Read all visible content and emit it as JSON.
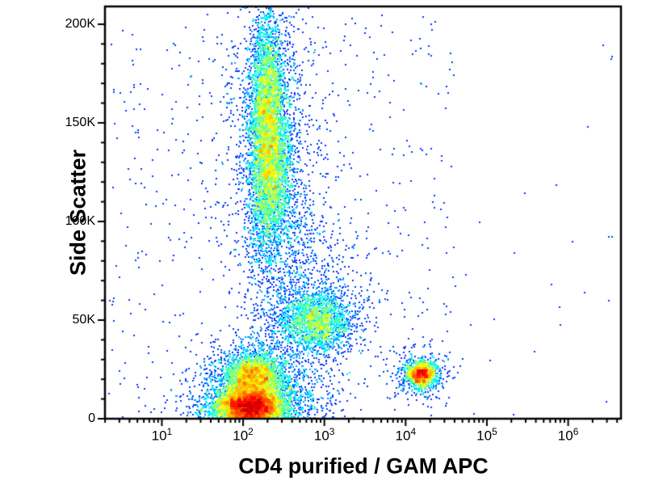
{
  "figure": {
    "background_color": "#ffffff",
    "frame_color": "#000000",
    "text_color": "#000000"
  },
  "chart_data": {
    "type": "scatter",
    "subtype": "flow-cytometry-density-dot-plot",
    "title": "",
    "xlabel": "CD4 purified / GAM APC",
    "ylabel": "Side Scatter",
    "x_scale": "log10",
    "x_range_log10": [
      0.3,
      6.65
    ],
    "x_tick_base": "10",
    "x_tick_exponents": [
      1,
      2,
      3,
      4,
      5,
      6
    ],
    "x_minor_ticks": "log-2-through-9-per-decade",
    "y_scale": "linear",
    "y_range": [
      0,
      209000
    ],
    "y_ticks": [
      {
        "value": 0,
        "label": "0"
      },
      {
        "value": 50000,
        "label": "50K"
      },
      {
        "value": 100000,
        "label": "100K"
      },
      {
        "value": 150000,
        "label": "150K"
      },
      {
        "value": 200000,
        "label": "200K"
      }
    ],
    "y_minor_step": 10000,
    "grid": false,
    "legend": false,
    "marker_px": 2,
    "colormap": "jet",
    "seed": 42,
    "populations": [
      {
        "name": "granulocytes-core",
        "n": 3500,
        "cx_log10": 2.32,
        "cy": 128000,
        "sx_log10": 0.13,
        "sy": 22000
      },
      {
        "name": "granulocytes-upper",
        "n": 1800,
        "cx_log10": 2.3,
        "cy": 168000,
        "sx_log10": 0.11,
        "sy": 20000
      },
      {
        "name": "granulocytes-halo",
        "n": 1300,
        "cx_log10": 2.35,
        "cy": 140000,
        "sx_log10": 0.3,
        "sy": 45000
      },
      {
        "name": "monocytes-core",
        "n": 1500,
        "cx_log10": 2.9,
        "cy": 49000,
        "sx_log10": 0.22,
        "sy": 7500
      },
      {
        "name": "monocytes-halo",
        "n": 700,
        "cx_log10": 2.82,
        "cy": 52000,
        "sx_log10": 0.38,
        "sy": 14000
      },
      {
        "name": "lymphocytes-low",
        "n": 4200,
        "cx_log10": 2.08,
        "cy": 6500,
        "sx_log10": 0.2,
        "sy": 4200
      },
      {
        "name": "lymphocytes-mid",
        "n": 2400,
        "cx_log10": 2.12,
        "cy": 21000,
        "sx_log10": 0.18,
        "sy": 6500
      },
      {
        "name": "lymphocytes-halo",
        "n": 1800,
        "cx_log10": 2.2,
        "cy": 12000,
        "sx_log10": 0.42,
        "sy": 11000
      },
      {
        "name": "cd4-positive-core",
        "n": 1100,
        "cx_log10": 4.2,
        "cy": 22500,
        "sx_log10": 0.09,
        "sy": 3200
      },
      {
        "name": "cd4-positive-halo",
        "n": 350,
        "cx_log10": 4.18,
        "cy": 23000,
        "sx_log10": 0.17,
        "sy": 6500
      },
      {
        "name": "mono-granulo-bridge",
        "n": 400,
        "cx_log10": 2.7,
        "cy": 80000,
        "sx_log10": 0.28,
        "sy": 20000
      }
    ],
    "background_events": [
      {
        "n": 600,
        "x_log10_range": [
          0.35,
          4.6
        ],
        "y_range": [
          0,
          205000
        ]
      },
      {
        "n": 25,
        "x_log10_range": [
          4.6,
          6.55
        ],
        "y_range": [
          0,
          205000
        ]
      }
    ]
  }
}
